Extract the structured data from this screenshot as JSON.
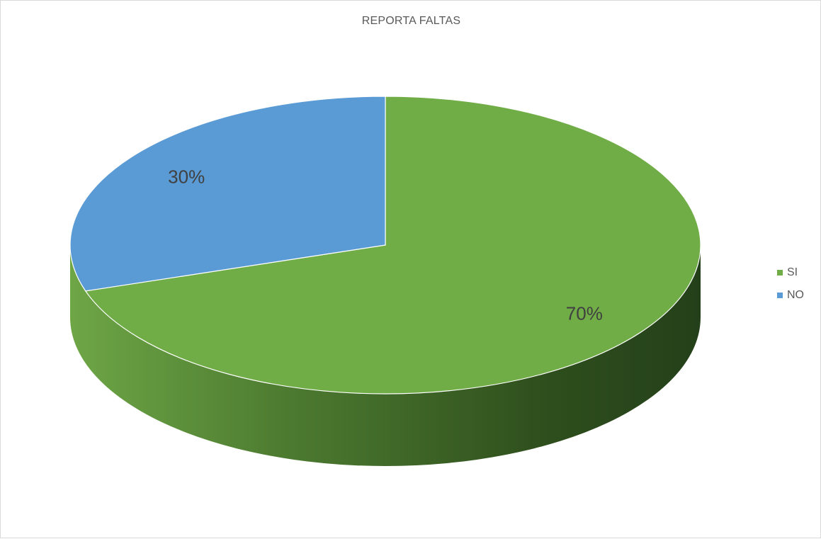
{
  "chart_data": {
    "type": "pie",
    "title": "REPORTA FALTAS",
    "categories": [
      "SI",
      "NO"
    ],
    "values": [
      70,
      30
    ],
    "labels": [
      "70%",
      "30%"
    ],
    "colors": [
      "#70AD47",
      "#5B9BD5"
    ],
    "legend_position": "right",
    "style": "3d"
  }
}
